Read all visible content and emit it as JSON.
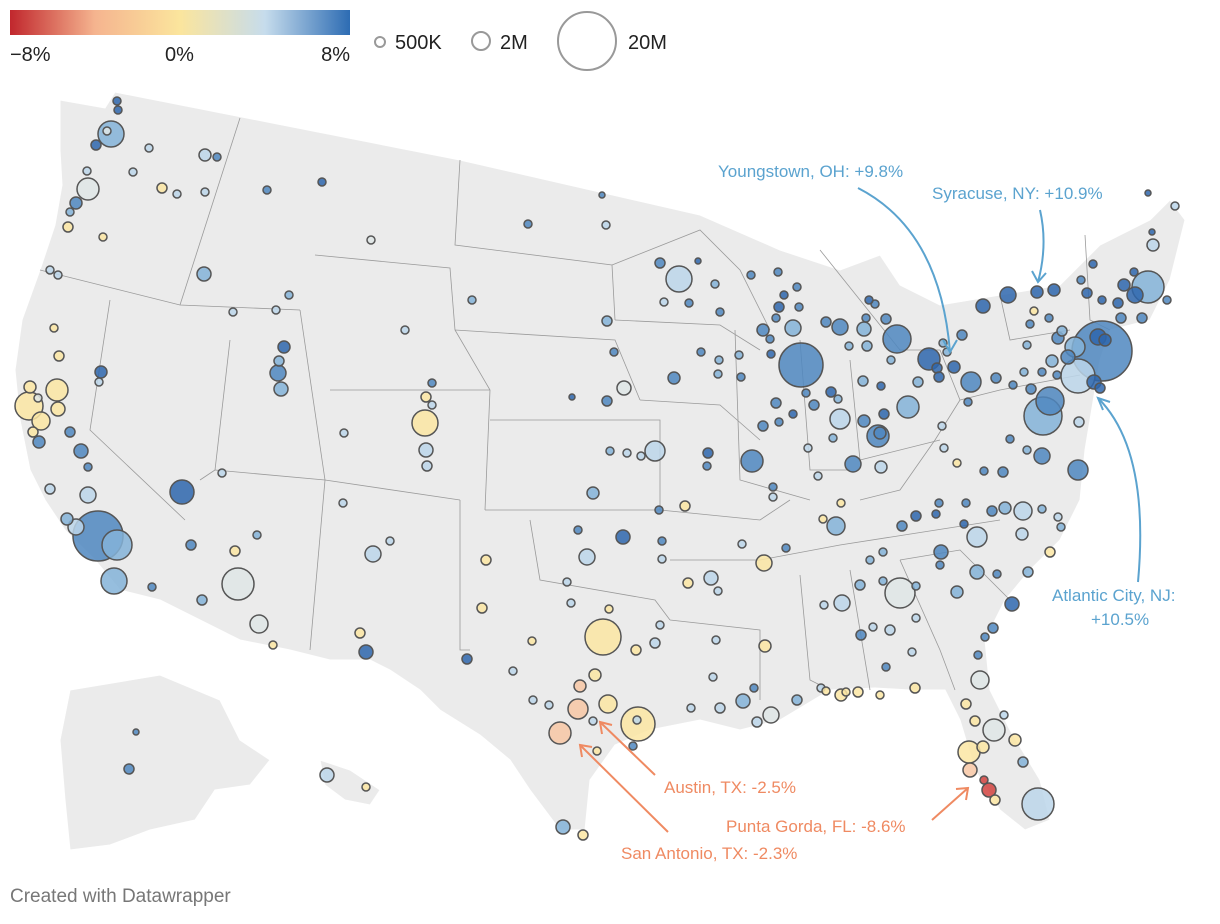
{
  "legend": {
    "color": {
      "min_label": "−8%",
      "mid_label": "0%",
      "max_label": "8%",
      "stops": [
        "#c1272d",
        "#f5b48f",
        "#fbe59d",
        "#c6dcec",
        "#2d6cb3"
      ]
    },
    "size": [
      {
        "label": "500K"
      },
      {
        "label": "2M"
      },
      {
        "label": "20M"
      }
    ]
  },
  "map": {
    "land_color": "#ebebeb",
    "border_color": "#9a9a9a",
    "bubble_stroke": "#555555",
    "annotations": [
      {
        "id": "youngstown",
        "text": "Youngstown, OH: +9.8%",
        "color": "#5ba3cf"
      },
      {
        "id": "syracuse",
        "text": "Syracuse, NY: +10.9%",
        "color": "#5ba3cf"
      },
      {
        "id": "atlantic-city-1",
        "text": "Atlantic City, NJ:",
        "color": "#5ba3cf"
      },
      {
        "id": "atlantic-city-2",
        "text": "+10.5%",
        "color": "#5ba3cf"
      },
      {
        "id": "austin",
        "text": "Austin, TX: -2.5%",
        "color": "#ef8a62"
      },
      {
        "id": "punta-gorda",
        "text": "Punta Gorda, FL: -8.6%",
        "color": "#ef8a62"
      },
      {
        "id": "san-antonio",
        "text": "San Antonio, TX: -2.3%",
        "color": "#ef8a62"
      }
    ]
  },
  "credit": "Created with Datawrapper"
}
